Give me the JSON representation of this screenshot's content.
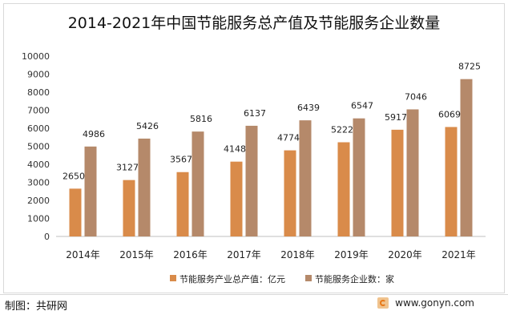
{
  "chart_data": {
    "type": "bar",
    "title": "2014-2021年中国节能服务总产值及节能服务企业数量",
    "categories": [
      "2014年",
      "2015年",
      "2016年",
      "2017年",
      "2018年",
      "2019年",
      "2020年",
      "2021年"
    ],
    "series": [
      {
        "name": "节能服务产业总产值：亿元",
        "color": "#d98b4a",
        "values": [
          2650,
          3127,
          3567,
          4148,
          4774,
          5222,
          5917,
          6069
        ]
      },
      {
        "name": "节能服务企业数：家",
        "color": "#b5896a",
        "values": [
          4986,
          5426,
          5816,
          6137,
          6439,
          6547,
          7046,
          8725
        ]
      }
    ],
    "ylim": [
      0,
      10000
    ],
    "yticks": [
      0,
      1000,
      2000,
      3000,
      4000,
      5000,
      6000,
      7000,
      8000,
      9000,
      10000
    ],
    "xlabel": "",
    "ylabel": "",
    "legend": "bottom",
    "grid": false
  },
  "footer": {
    "source": "制图：共研网",
    "website": "www.gonyn.com"
  }
}
